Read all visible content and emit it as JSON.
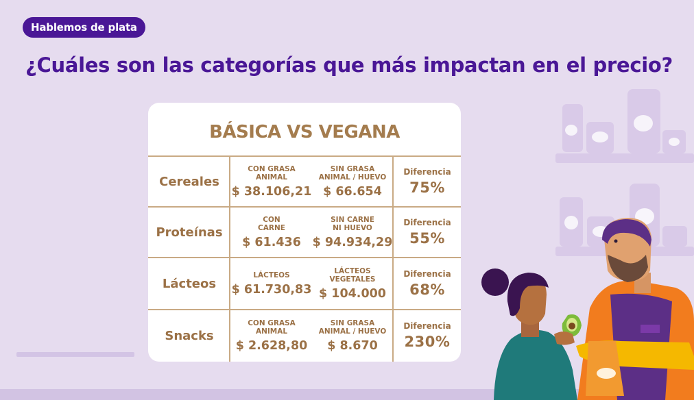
{
  "badge": {
    "text": "Hablemos de plata"
  },
  "headline": "¿Cuáles son las categorías que más impactan en el precio?",
  "table": {
    "title": "BÁSICA VS VEGANA",
    "rows": [
      {
        "category": "Cereales",
        "a_label": "CON GRASA\nANIMAL",
        "a_price": "$ 38.106,21",
        "b_label": "SIN GRASA\nANIMAL / HUEVO",
        "b_price": "$ 66.654",
        "diff_label": "Diferencia",
        "diff_value": "75%"
      },
      {
        "category": "Proteínas",
        "a_label": "CON\nCARNE",
        "a_price": "$ 61.436",
        "b_label": "SIN CARNE\nNI HUEVO",
        "b_price": "$ 94.934,29",
        "diff_label": "Diferencia",
        "diff_value": "55%"
      },
      {
        "category": "Lácteos",
        "a_label": "LÁCTEOS",
        "a_price": "$ 61.730,83",
        "b_label": "LÁCTEOS\nVEGETALES",
        "b_price": "$ 104.000",
        "diff_label": "Diferencia",
        "diff_value": "68%"
      },
      {
        "category": "Snacks",
        "a_label": "CON GRASA\nANIMAL",
        "a_price": "$ 2.628,80",
        "b_label": "SIN GRASA\nANIMAL / HUEVO",
        "b_price": "$ 8.670",
        "diff_label": "Diferencia",
        "diff_value": "230%"
      }
    ]
  },
  "colors": {
    "background": "#e6dcef",
    "accent": "#4a1796",
    "table_text": "#9b7146",
    "table_lines": "#c9aa84"
  },
  "illustration": {
    "icon": "shopkeeper-and-customer-with-avocado-illustration"
  }
}
